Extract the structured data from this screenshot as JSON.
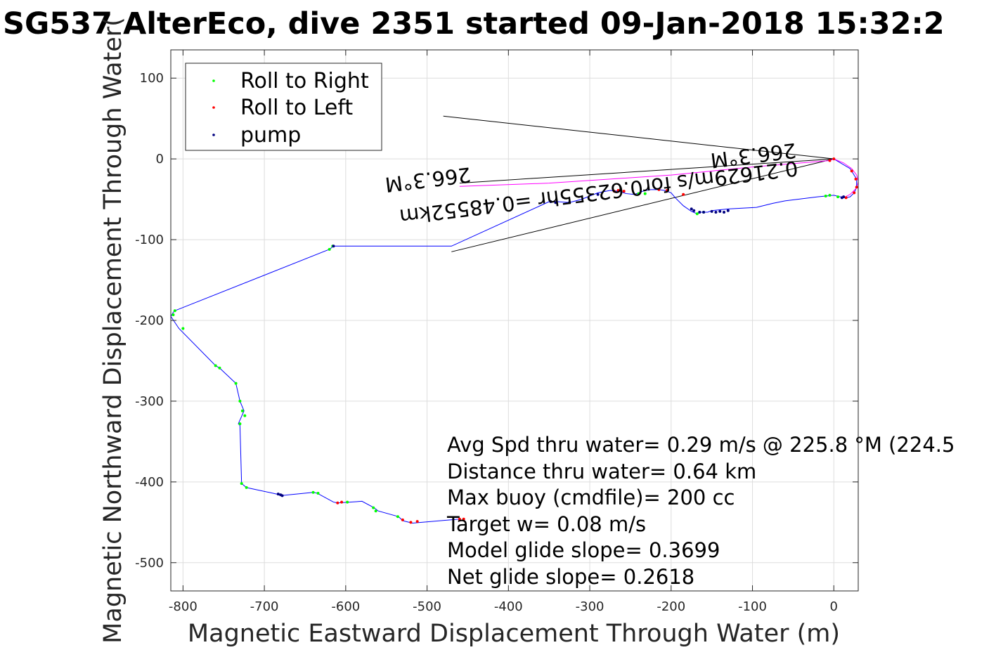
{
  "chart_data": {
    "type": "line",
    "title": "SG537 AlterEco, dive 2351 started 09-Jan-2018 15:32:2",
    "xlabel": "Magnetic Eastward Displacement Through Water (m)",
    "ylabel": "Magnetic Northward Displacement Through Water(",
    "xlim": [
      -815,
      30
    ],
    "ylim": [
      -535,
      135
    ],
    "xticks": [
      -800,
      -700,
      -600,
      -500,
      -400,
      -300,
      -200,
      -100,
      0
    ],
    "yticks": [
      100,
      0,
      -100,
      -200,
      -300,
      -400,
      -500
    ],
    "grid": true,
    "legend_position": "top-left",
    "legend": [
      {
        "label": "Roll to Right",
        "color": "#00ff00"
      },
      {
        "label": "Roll to Left",
        "color": "#ff0000"
      },
      {
        "label": "pump",
        "color": "#000080"
      }
    ],
    "track_color": "#0000ff",
    "surface_color": "#ff00ff",
    "track": {
      "x": [
        0,
        20,
        28,
        28,
        25,
        20,
        15,
        8,
        0,
        -20,
        -60,
        -75,
        -95,
        -130,
        -150,
        -155,
        -160,
        -165,
        -168,
        -175,
        -185,
        -195,
        -200,
        -208,
        -215,
        -225,
        -235,
        -245,
        -255,
        -265,
        -275,
        -290,
        -310,
        -325,
        -340,
        -350,
        -470,
        -615,
        -620,
        -810,
        -812,
        -815,
        -805,
        -760,
        -755,
        -735,
        -730,
        -725,
        -732,
        -730,
        -728,
        -722,
        -685,
        -680,
        -640,
        -635,
        -615,
        -610,
        -595,
        -580,
        -565,
        -560,
        -535,
        -530,
        -518,
        -460
      ],
      "y": [
        0,
        -12,
        -25,
        -35,
        -42,
        -47,
        -48,
        -47,
        -45,
        -47,
        -52,
        -55,
        -60,
        -62,
        -64,
        -66,
        -66,
        -66,
        -68,
        -65,
        -58,
        -48,
        -42,
        -39,
        -38,
        -38,
        -40,
        -44,
        -43,
        -40,
        -39,
        -42,
        -50,
        -54,
        -53,
        -53,
        -108,
        -108,
        -112,
        -188,
        -190,
        -195,
        -210,
        -256,
        -259,
        -278,
        -300,
        -312,
        -328,
        -330,
        -402,
        -407,
        -415,
        -417,
        -413,
        -414,
        -425,
        -426,
        -425,
        -424,
        -432,
        -436,
        -443,
        -448,
        -451,
        -446
      ]
    },
    "surface": {
      "x": [
        -460,
        -350,
        -200,
        -100,
        -5,
        0,
        12,
        22,
        28,
        30,
        28,
        20,
        12
      ],
      "y": [
        -34,
        -30,
        -20,
        -10,
        -2,
        0,
        -5,
        -12,
        -20,
        -28,
        -36,
        -44,
        -48
      ]
    },
    "roll_right": {
      "x": [
        -810,
        -812,
        -800,
        -760,
        -755,
        -735,
        -730,
        -727,
        -724,
        -730,
        -728,
        -722,
        -640,
        -634,
        -598,
        -566,
        -563,
        -536,
        -620,
        -616,
        -168,
        -160,
        -240,
        -232,
        -5,
        -10,
        5
      ],
      "y": [
        -188,
        -193,
        -210,
        -256,
        -259,
        -278,
        -300,
        -312,
        -318,
        -328,
        -402,
        -407,
        -413,
        -414,
        -425,
        -432,
        -436,
        -443,
        -112,
        -108,
        -68,
        -66,
        -43,
        -43,
        -45,
        -46,
        -47
      ]
    },
    "roll_left": {
      "x": [
        -610,
        -605,
        -530,
        -520,
        -512,
        -460,
        -455,
        -270,
        -265,
        -258,
        -215,
        -205,
        -185,
        15,
        25,
        28,
        27,
        22,
        0,
        -5
      ],
      "y": [
        -426,
        -425,
        -447,
        -450,
        -449,
        -446,
        -446,
        -40,
        -39,
        -40,
        -38,
        -39,
        -44,
        -48,
        -42,
        -35,
        -25,
        -15,
        0,
        -2
      ]
    },
    "pump": {
      "x": [
        -683,
        -680,
        -678,
        -615,
        -348,
        -342,
        -325,
        -290,
        -175,
        -172,
        -165,
        -160,
        -150,
        -140,
        -130,
        -135,
        -145,
        10,
        12
      ],
      "y": [
        -415,
        -416,
        -417,
        -108,
        -53,
        -54,
        -54,
        -44,
        -62,
        -64,
        -66,
        -66,
        -65,
        -65,
        -64,
        -66,
        -66,
        -48,
        -47
      ]
    },
    "heading_lines": [
      {
        "x": [
          0,
          -480
        ],
        "y": [
          0,
          53
        ]
      },
      {
        "x": [
          0,
          -470
        ],
        "y": [
          0,
          -115
        ]
      },
      {
        "x": [
          0,
          -460
        ],
        "y": [
          0,
          -30
        ]
      }
    ],
    "annotations": [
      {
        "text": "0.21629m/s for0.62355hr =0.48552km",
        "x": -290,
        "y": -33,
        "rotate": 180
      },
      {
        "text": "266.3°M",
        "x": -500,
        "y": -17,
        "rotate": 180
      },
      {
        "text": "266.3°M",
        "x": -100,
        "y": 13,
        "rotate": 180
      }
    ],
    "stats": [
      "Avg Spd thru water=  0.29 m/s @ 225.8 °M (224.5",
      "Distance thru water=  0.64 km",
      "Max buoy (cmdfile)= 200 cc",
      "Target w= 0.08 m/s",
      "Model glide slope= 0.3699",
      "Net glide slope= 0.2618"
    ]
  }
}
